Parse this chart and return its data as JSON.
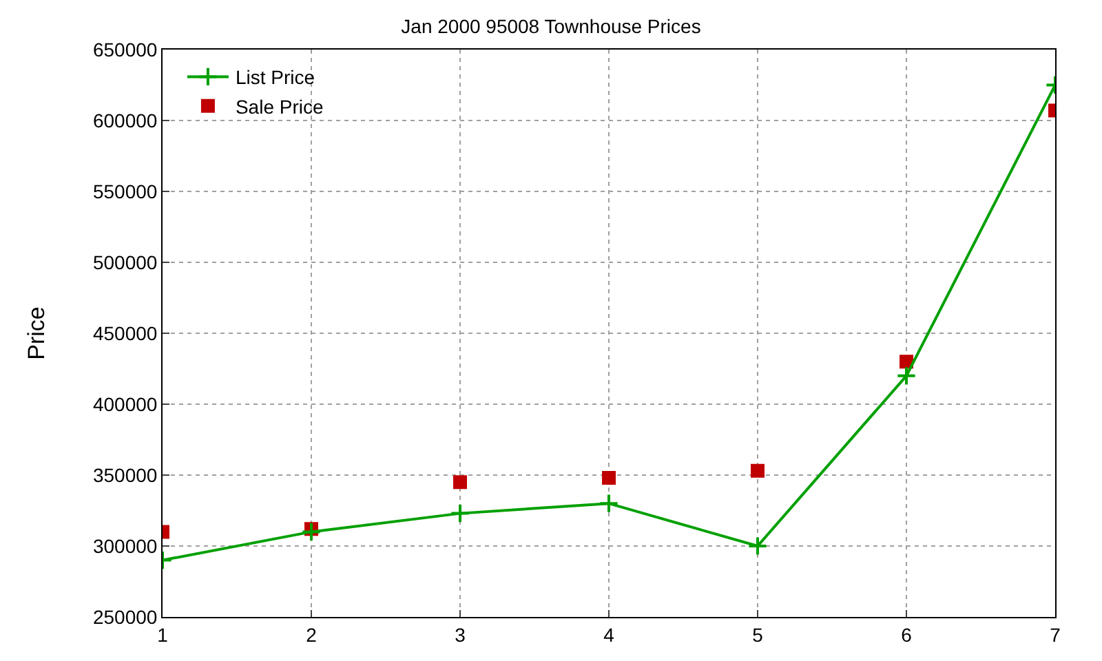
{
  "chart_data": {
    "type": "line",
    "title": "Jan 2000 95008 Townhouse Prices",
    "ylabel": "Price",
    "x": [
      1,
      2,
      3,
      4,
      5,
      6,
      7
    ],
    "series": [
      {
        "name": "List Price",
        "type": "line",
        "color": "#00a000",
        "marker": "cross",
        "line_style": "solid",
        "values": [
          290000,
          310000,
          323000,
          330000,
          300000,
          420000,
          625000
        ]
      },
      {
        "name": "Sale Price",
        "type": "scatter",
        "color": "#c00000",
        "marker": "square",
        "values": [
          310000,
          312000,
          345000,
          348000,
          353000,
          430000,
          607000
        ]
      }
    ],
    "xlim": [
      1,
      7
    ],
    "xticks": [
      1,
      2,
      3,
      4,
      5,
      6,
      7
    ],
    "ylim": [
      250000,
      650000
    ],
    "yticks": [
      250000,
      300000,
      350000,
      400000,
      450000,
      500000,
      550000,
      600000,
      650000
    ],
    "grid": true,
    "legend": "top left"
  }
}
